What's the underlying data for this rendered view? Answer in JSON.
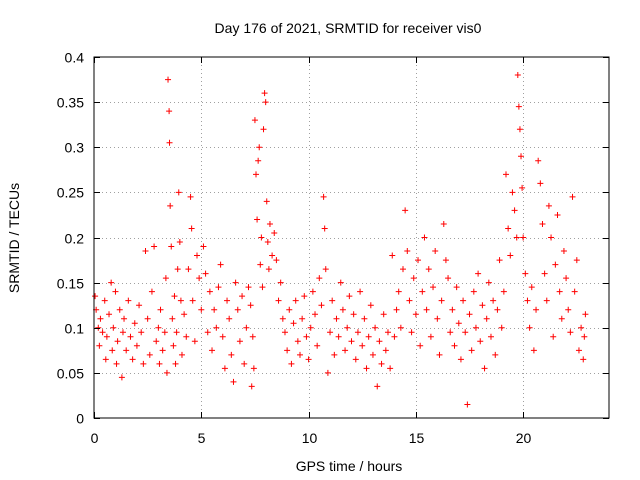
{
  "chart_data": {
    "type": "scatter",
    "title": "Day 176 of 2021, SRMTID for receiver vis0",
    "xlabel": "GPS time / hours",
    "ylabel": "SRMTID / TECUs",
    "xlim": [
      0,
      24
    ],
    "ylim": [
      0,
      0.4
    ],
    "xticks": [
      0,
      5,
      10,
      15,
      20
    ],
    "xtick_labels": [
      "0",
      "5",
      "10",
      "15",
      "20"
    ],
    "yticks": [
      0,
      0.05,
      0.1,
      0.15,
      0.2,
      0.25,
      0.3,
      0.35,
      0.4
    ],
    "ytick_labels": [
      "0",
      "0.05",
      "0.1",
      "0.15",
      "0.2",
      "0.25",
      "0.3",
      "0.35",
      "0.4"
    ],
    "grid": true,
    "marker": "plus",
    "color": "#ff0000",
    "series": [
      {
        "name": "vis0",
        "points": [
          [
            0.05,
            0.135
          ],
          [
            0.1,
            0.12
          ],
          [
            0.2,
            0.1
          ],
          [
            0.25,
            0.08
          ],
          [
            0.3,
            0.11
          ],
          [
            0.4,
            0.095
          ],
          [
            0.5,
            0.13
          ],
          [
            0.55,
            0.065
          ],
          [
            0.6,
            0.09
          ],
          [
            0.7,
            0.115
          ],
          [
            0.8,
            0.15
          ],
          [
            0.85,
            0.075
          ],
          [
            0.9,
            0.1
          ],
          [
            1.0,
            0.14
          ],
          [
            1.05,
            0.06
          ],
          [
            1.1,
            0.085
          ],
          [
            1.2,
            0.12
          ],
          [
            1.3,
            0.045
          ],
          [
            1.35,
            0.095
          ],
          [
            1.4,
            0.11
          ],
          [
            1.5,
            0.075
          ],
          [
            1.6,
            0.13
          ],
          [
            1.7,
            0.09
          ],
          [
            1.8,
            0.065
          ],
          [
            1.9,
            0.105
          ],
          [
            2.0,
            0.08
          ],
          [
            2.1,
            0.125
          ],
          [
            2.2,
            0.095
          ],
          [
            2.3,
            0.06
          ],
          [
            2.4,
            0.185
          ],
          [
            2.5,
            0.11
          ],
          [
            2.6,
            0.07
          ],
          [
            2.7,
            0.14
          ],
          [
            2.8,
            0.19
          ],
          [
            2.9,
            0.085
          ],
          [
            3.0,
            0.1
          ],
          [
            3.05,
            0.06
          ],
          [
            3.1,
            0.12
          ],
          [
            3.2,
            0.075
          ],
          [
            3.3,
            0.095
          ],
          [
            3.35,
            0.155
          ],
          [
            3.4,
            0.05
          ],
          [
            3.45,
            0.375
          ],
          [
            3.5,
            0.34
          ],
          [
            3.52,
            0.305
          ],
          [
            3.55,
            0.235
          ],
          [
            3.6,
            0.19
          ],
          [
            3.65,
            0.11
          ],
          [
            3.7,
            0.08
          ],
          [
            3.75,
            0.135
          ],
          [
            3.8,
            0.06
          ],
          [
            3.85,
            0.095
          ],
          [
            3.9,
            0.165
          ],
          [
            3.95,
            0.25
          ],
          [
            4.0,
            0.195
          ],
          [
            4.05,
            0.13
          ],
          [
            4.1,
            0.07
          ],
          [
            4.2,
            0.115
          ],
          [
            4.3,
            0.09
          ],
          [
            4.4,
            0.165
          ],
          [
            4.5,
            0.245
          ],
          [
            4.55,
            0.21
          ],
          [
            4.6,
            0.13
          ],
          [
            4.7,
            0.085
          ],
          [
            4.8,
            0.18
          ],
          [
            4.9,
            0.155
          ],
          [
            5.0,
            0.12
          ],
          [
            5.1,
            0.19
          ],
          [
            5.2,
            0.16
          ],
          [
            5.3,
            0.095
          ],
          [
            5.4,
            0.14
          ],
          [
            5.5,
            0.075
          ],
          [
            5.6,
            0.12
          ],
          [
            5.7,
            0.1
          ],
          [
            5.8,
            0.145
          ],
          [
            5.9,
            0.17
          ],
          [
            6.0,
            0.09
          ],
          [
            6.1,
            0.055
          ],
          [
            6.2,
            0.13
          ],
          [
            6.3,
            0.11
          ],
          [
            6.4,
            0.07
          ],
          [
            6.5,
            0.04
          ],
          [
            6.6,
            0.15
          ],
          [
            6.7,
            0.12
          ],
          [
            6.8,
            0.085
          ],
          [
            6.9,
            0.135
          ],
          [
            7.0,
            0.06
          ],
          [
            7.1,
            0.1
          ],
          [
            7.2,
            0.145
          ],
          [
            7.3,
            0.125
          ],
          [
            7.35,
            0.035
          ],
          [
            7.4,
            0.09
          ],
          [
            7.45,
            0.055
          ],
          [
            7.5,
            0.33
          ],
          [
            7.55,
            0.27
          ],
          [
            7.6,
            0.22
          ],
          [
            7.65,
            0.285
          ],
          [
            7.7,
            0.3
          ],
          [
            7.75,
            0.17
          ],
          [
            7.8,
            0.2
          ],
          [
            7.85,
            0.145
          ],
          [
            7.9,
            0.32
          ],
          [
            7.95,
            0.36
          ],
          [
            8.0,
            0.35
          ],
          [
            8.05,
            0.24
          ],
          [
            8.1,
            0.195
          ],
          [
            8.15,
            0.165
          ],
          [
            8.2,
            0.215
          ],
          [
            8.3,
            0.18
          ],
          [
            8.4,
            0.205
          ],
          [
            8.5,
            0.175
          ],
          [
            8.6,
            0.13
          ],
          [
            8.7,
            0.15
          ],
          [
            8.8,
            0.11
          ],
          [
            8.9,
            0.095
          ],
          [
            9.0,
            0.075
          ],
          [
            9.1,
            0.12
          ],
          [
            9.2,
            0.06
          ],
          [
            9.3,
            0.105
          ],
          [
            9.4,
            0.13
          ],
          [
            9.5,
            0.085
          ],
          [
            9.6,
            0.07
          ],
          [
            9.7,
            0.11
          ],
          [
            9.8,
            0.135
          ],
          [
            9.9,
            0.09
          ],
          [
            10.0,
            0.065
          ],
          [
            10.1,
            0.1
          ],
          [
            10.2,
            0.14
          ],
          [
            10.3,
            0.115
          ],
          [
            10.4,
            0.08
          ],
          [
            10.5,
            0.155
          ],
          [
            10.6,
            0.125
          ],
          [
            10.7,
            0.245
          ],
          [
            10.75,
            0.21
          ],
          [
            10.8,
            0.165
          ],
          [
            10.9,
            0.05
          ],
          [
            11.0,
            0.095
          ],
          [
            11.1,
            0.13
          ],
          [
            11.2,
            0.07
          ],
          [
            11.3,
            0.11
          ],
          [
            11.4,
            0.09
          ],
          [
            11.5,
            0.15
          ],
          [
            11.6,
            0.12
          ],
          [
            11.7,
            0.075
          ],
          [
            11.8,
            0.1
          ],
          [
            11.9,
            0.135
          ],
          [
            12.0,
            0.085
          ],
          [
            12.1,
            0.115
          ],
          [
            12.2,
            0.065
          ],
          [
            12.3,
            0.095
          ],
          [
            12.4,
            0.14
          ],
          [
            12.5,
            0.08
          ],
          [
            12.6,
            0.11
          ],
          [
            12.7,
            0.055
          ],
          [
            12.8,
            0.09
          ],
          [
            12.9,
            0.125
          ],
          [
            13.0,
            0.07
          ],
          [
            13.1,
            0.1
          ],
          [
            13.2,
            0.035
          ],
          [
            13.3,
            0.085
          ],
          [
            13.4,
            0.06
          ],
          [
            13.5,
            0.115
          ],
          [
            13.6,
            0.075
          ],
          [
            13.7,
            0.095
          ],
          [
            13.8,
            0.055
          ],
          [
            13.9,
            0.18
          ],
          [
            14.0,
            0.09
          ],
          [
            14.1,
            0.12
          ],
          [
            14.2,
            0.14
          ],
          [
            14.3,
            0.1
          ],
          [
            14.4,
            0.165
          ],
          [
            14.5,
            0.23
          ],
          [
            14.6,
            0.185
          ],
          [
            14.7,
            0.13
          ],
          [
            14.8,
            0.095
          ],
          [
            14.9,
            0.155
          ],
          [
            15.0,
            0.115
          ],
          [
            15.1,
            0.175
          ],
          [
            15.2,
            0.08
          ],
          [
            15.3,
            0.14
          ],
          [
            15.4,
            0.2
          ],
          [
            15.5,
            0.12
          ],
          [
            15.6,
            0.165
          ],
          [
            15.7,
            0.09
          ],
          [
            15.8,
            0.145
          ],
          [
            15.9,
            0.185
          ],
          [
            16.0,
            0.11
          ],
          [
            16.1,
            0.07
          ],
          [
            16.2,
            0.13
          ],
          [
            16.3,
            0.215
          ],
          [
            16.4,
            0.175
          ],
          [
            16.5,
            0.155
          ],
          [
            16.6,
            0.095
          ],
          [
            16.7,
            0.12
          ],
          [
            16.8,
            0.08
          ],
          [
            16.9,
            0.145
          ],
          [
            17.0,
            0.105
          ],
          [
            17.1,
            0.065
          ],
          [
            17.2,
            0.13
          ],
          [
            17.3,
            0.095
          ],
          [
            17.4,
            0.015
          ],
          [
            17.5,
            0.115
          ],
          [
            17.6,
            0.075
          ],
          [
            17.7,
            0.14
          ],
          [
            17.8,
            0.1
          ],
          [
            17.9,
            0.16
          ],
          [
            18.0,
            0.085
          ],
          [
            18.1,
            0.125
          ],
          [
            18.2,
            0.055
          ],
          [
            18.3,
            0.11
          ],
          [
            18.4,
            0.15
          ],
          [
            18.5,
            0.09
          ],
          [
            18.6,
            0.13
          ],
          [
            18.7,
            0.07
          ],
          [
            18.8,
            0.12
          ],
          [
            18.9,
            0.175
          ],
          [
            19.0,
            0.1
          ],
          [
            19.1,
            0.14
          ],
          [
            19.2,
            0.27
          ],
          [
            19.3,
            0.21
          ],
          [
            19.4,
            0.18
          ],
          [
            19.5,
            0.25
          ],
          [
            19.6,
            0.23
          ],
          [
            19.7,
            0.2
          ],
          [
            19.75,
            0.38
          ],
          [
            19.8,
            0.345
          ],
          [
            19.85,
            0.32
          ],
          [
            19.9,
            0.29
          ],
          [
            19.95,
            0.255
          ],
          [
            20.0,
            0.2
          ],
          [
            20.1,
            0.16
          ],
          [
            20.2,
            0.13
          ],
          [
            20.3,
            0.1
          ],
          [
            20.4,
            0.145
          ],
          [
            20.5,
            0.075
          ],
          [
            20.6,
            0.12
          ],
          [
            20.7,
            0.285
          ],
          [
            20.8,
            0.26
          ],
          [
            20.9,
            0.215
          ],
          [
            21.0,
            0.16
          ],
          [
            21.1,
            0.13
          ],
          [
            21.2,
            0.235
          ],
          [
            21.3,
            0.2
          ],
          [
            21.4,
            0.09
          ],
          [
            21.5,
            0.17
          ],
          [
            21.6,
            0.225
          ],
          [
            21.7,
            0.14
          ],
          [
            21.8,
            0.11
          ],
          [
            21.9,
            0.185
          ],
          [
            22.0,
            0.155
          ],
          [
            22.1,
            0.12
          ],
          [
            22.2,
            0.095
          ],
          [
            22.3,
            0.245
          ],
          [
            22.4,
            0.14
          ],
          [
            22.5,
            0.175
          ],
          [
            22.6,
            0.075
          ],
          [
            22.7,
            0.1
          ],
          [
            22.8,
            0.065
          ],
          [
            22.85,
            0.09
          ],
          [
            22.9,
            0.115
          ]
        ]
      }
    ]
  }
}
